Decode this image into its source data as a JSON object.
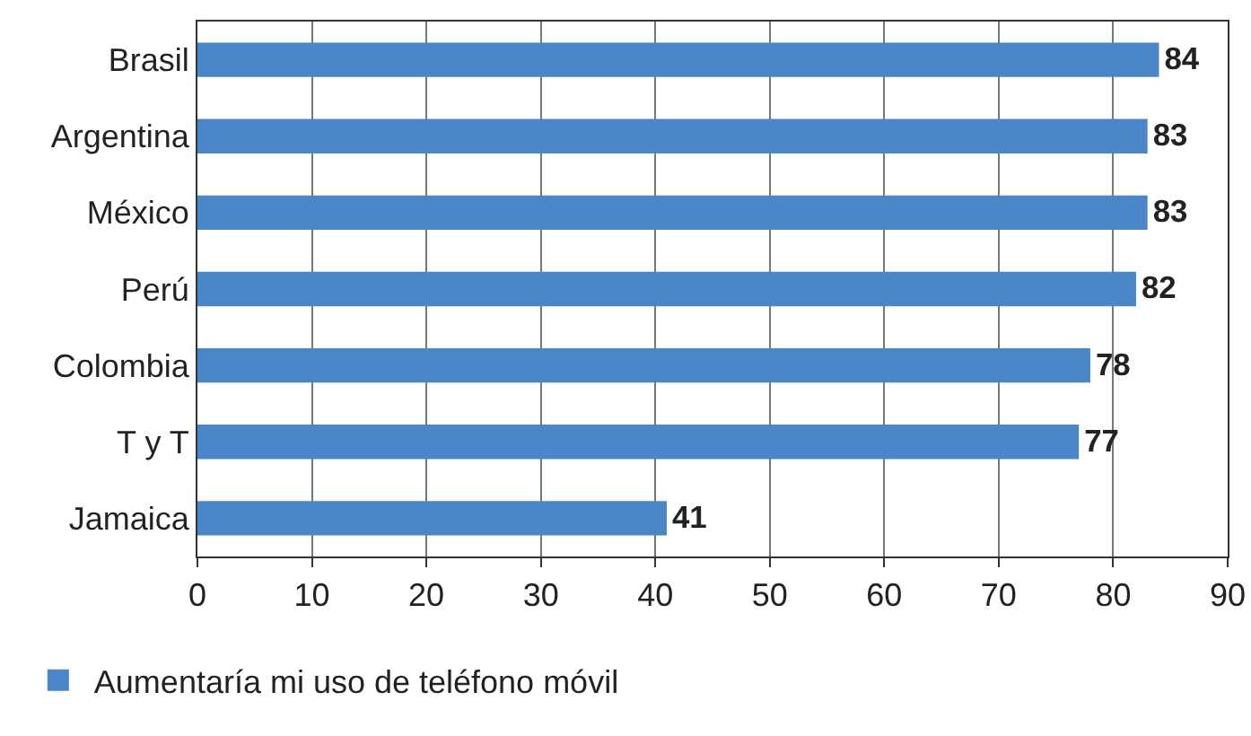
{
  "chart_data": {
    "type": "bar",
    "orientation": "horizontal",
    "categories": [
      "Brasil",
      "Argentina",
      "México",
      "Perú",
      "Colombia",
      "T y T",
      "Jamaica"
    ],
    "series": [
      {
        "name": "Aumentaría mi uso de teléfono móvil",
        "color": "#4a86c8",
        "values": [
          84,
          83,
          83,
          82,
          78,
          77,
          41
        ]
      }
    ],
    "xlim": [
      0,
      90
    ],
    "xticks": [
      0,
      10,
      20,
      30,
      40,
      50,
      60,
      70,
      80,
      90
    ],
    "grid": "x",
    "legend": "bottom left",
    "data_labels": true
  }
}
